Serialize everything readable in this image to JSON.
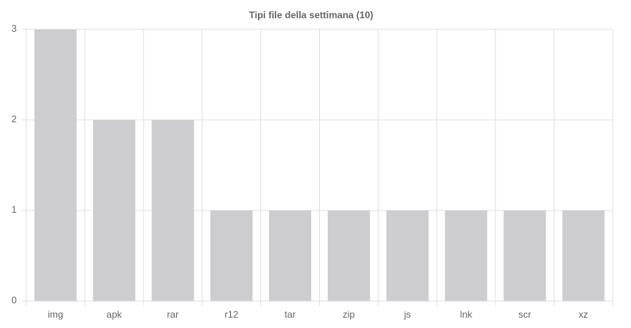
{
  "chart_data": {
    "type": "bar",
    "title": "Tipi file della settimana (10)",
    "categories": [
      "img",
      "apk",
      "rar",
      "r12",
      "tar",
      "zip",
      "js",
      "lnk",
      "scr",
      "xz"
    ],
    "values": [
      3,
      2,
      2,
      1,
      1,
      1,
      1,
      1,
      1,
      1
    ],
    "color": "#cdcdcf",
    "ylim": [
      0,
      3
    ],
    "yticks": [
      0,
      1,
      2,
      3
    ],
    "grid": true
  }
}
